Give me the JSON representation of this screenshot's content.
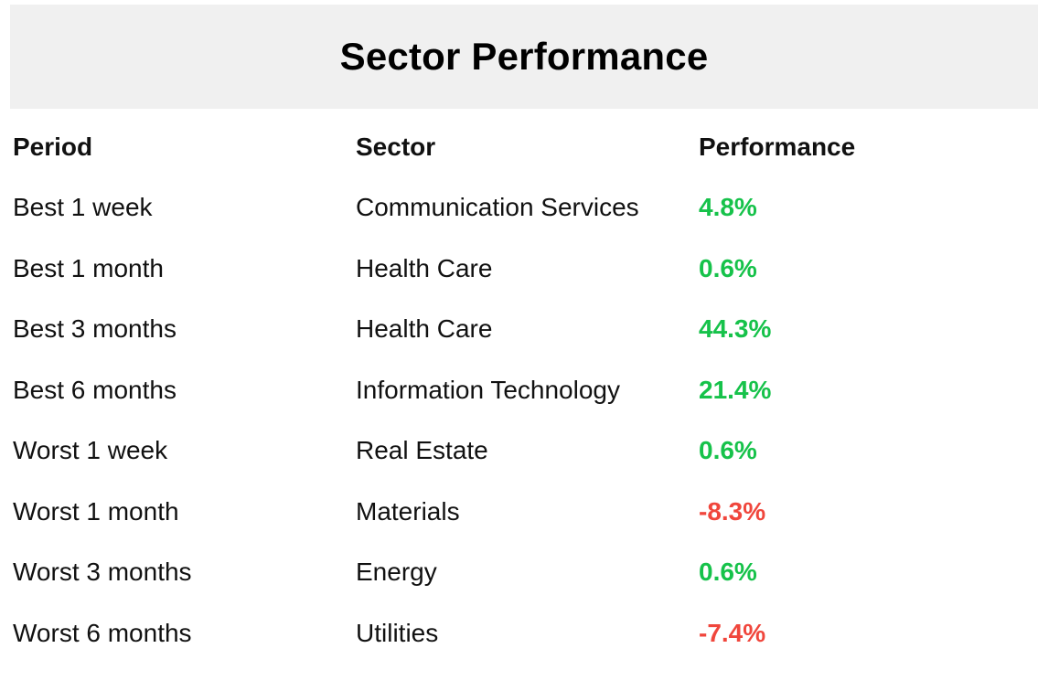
{
  "title": "Sector Performance",
  "columns": {
    "period": "Period",
    "sector": "Sector",
    "performance": "Performance"
  },
  "colors": {
    "positive": "#16c24a",
    "negative": "#f0463c",
    "header_bg": "#f0f0f0"
  },
  "rows": [
    {
      "period": "Best 1 week",
      "sector": "Communication Services",
      "performance": "4.8%",
      "trend": "positive"
    },
    {
      "period": "Best 1 month",
      "sector": "Health Care",
      "performance": "0.6%",
      "trend": "positive"
    },
    {
      "period": "Best 3 months",
      "sector": "Health Care",
      "performance": "44.3%",
      "trend": "positive"
    },
    {
      "period": "Best 6 months",
      "sector": "Information Technology",
      "performance": "21.4%",
      "trend": "positive"
    },
    {
      "period": "Worst 1 week",
      "sector": "Real Estate",
      "performance": "0.6%",
      "trend": "positive"
    },
    {
      "period": "Worst 1 month",
      "sector": "Materials",
      "performance": "-8.3%",
      "trend": "negative"
    },
    {
      "period": "Worst 3 months",
      "sector": "Energy",
      "performance": "0.6%",
      "trend": "positive"
    },
    {
      "period": "Worst 6 months",
      "sector": "Utilities",
      "performance": "-7.4%",
      "trend": "negative"
    }
  ]
}
